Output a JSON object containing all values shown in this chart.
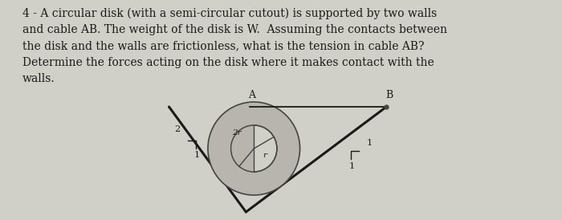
{
  "bg_color": "#d0cfc8",
  "text_color": "#1a1a1a",
  "title_text": "4 - A circular disk (with a semi-circular cutout) is supported by two walls\nand cable AB. The weight of the disk is W.  Assuming the contacts between\nthe disk and the walls are frictionless, what is the tension in cable AB?\nDetermine the forces acting on the disk where it makes contact with the\nwalls.",
  "title_fontsize": 10.0,
  "line_color": "#1a1a1a",
  "disk_fill_color": "#b8b5ae",
  "disk_edge_color": "#444444",
  "cutout_fill": "#d0cfc8",
  "label_A": "A",
  "label_B": "B",
  "label_2": "2",
  "label_1_left": "1",
  "label_1_right": "1",
  "label_1_right2": "1",
  "label_2r": "2r",
  "label_r": "r"
}
